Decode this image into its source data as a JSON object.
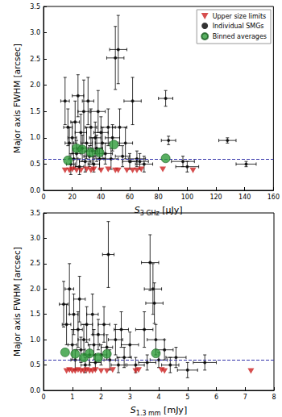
{
  "chart_data": [
    {
      "type": "scatter",
      "xlabel": {
        "main": "S",
        "sub": "3 GHz",
        "rest": " [μJy]"
      },
      "ylabel": "Major axis FWHM [arcsec]",
      "xlim": [
        0,
        160
      ],
      "xticks": [
        0,
        20,
        40,
        60,
        80,
        100,
        120,
        140,
        160
      ],
      "ylim": [
        0,
        3.5
      ],
      "yticks": [
        {
          "value": 0,
          "label": "0.0"
        },
        {
          "value": 0.5,
          "label": "0.5"
        },
        {
          "value": 1,
          "label": "1.0"
        },
        {
          "value": 1.5,
          "label": "1.5"
        },
        {
          "value": 2,
          "label": "2.0"
        },
        {
          "value": 2.5,
          "label": "2.5"
        },
        {
          "value": 3,
          "label": "3.0"
        },
        {
          "value": 3.5,
          "label": "3.5"
        }
      ],
      "grid": false,
      "legend": "upper right",
      "reference_line": {
        "y": 0.6,
        "color": "#3333aa",
        "line_style": "dashed"
      },
      "series": [
        {
          "name": "Upper size limits",
          "color": "#cc2222",
          "marker": "triangle_down",
          "values": [
            [
              15,
              0.38
            ],
            [
              18,
              0.38
            ],
            [
              20,
              0.4
            ],
            [
              23,
              0.38
            ],
            [
              26,
              0.38
            ],
            [
              30,
              0.4
            ],
            [
              33,
              0.38
            ],
            [
              35,
              0.4
            ],
            [
              40,
              0.38
            ],
            [
              45,
              0.4
            ],
            [
              50,
              0.38
            ],
            [
              52,
              0.38
            ],
            [
              58,
              0.38
            ],
            [
              62,
              0.38
            ],
            [
              65,
              0.38
            ],
            [
              68,
              0.4
            ],
            [
              83,
              0.4
            ],
            [
              104,
              0.38
            ]
          ]
        },
        {
          "name": "Individual SMGs",
          "color": "#000000",
          "marker": "circle",
          "values": [
            [
              15,
              1.7
            ],
            [
              17,
              1.2
            ],
            [
              18,
              0.9
            ],
            [
              19,
              0.5
            ],
            [
              20,
              1.0
            ],
            [
              21,
              0.6
            ],
            [
              22,
              1.3
            ],
            [
              23,
              0.7
            ],
            [
              24,
              1.8
            ],
            [
              25,
              0.45
            ],
            [
              26,
              1.1
            ],
            [
              27,
              0.8
            ],
            [
              28,
              1.5
            ],
            [
              29,
              0.55
            ],
            [
              30,
              0.9
            ],
            [
              31,
              1.7
            ],
            [
              32,
              0.65
            ],
            [
              33,
              1.2
            ],
            [
              34,
              0.75
            ],
            [
              35,
              0.5
            ],
            [
              36,
              1.0
            ],
            [
              37,
              0.8
            ],
            [
              38,
              1.5
            ],
            [
              39,
              0.6
            ],
            [
              40,
              1.1
            ],
            [
              41,
              0.9
            ],
            [
              43,
              0.7
            ],
            [
              45,
              1.2
            ],
            [
              47,
              0.6
            ],
            [
              48,
              1.0
            ],
            [
              50,
              2.52
            ],
            [
              52,
              2.68
            ],
            [
              53,
              1.2
            ],
            [
              55,
              0.65
            ],
            [
              57,
              0.9
            ],
            [
              60,
              0.55
            ],
            [
              62,
              1.7
            ],
            [
              65,
              0.6
            ],
            [
              67,
              0.55
            ],
            [
              70,
              0.5
            ],
            [
              85,
              1.75
            ],
            [
              87,
              0.95
            ],
            [
              97,
              0.55
            ],
            [
              100,
              0.45
            ],
            [
              128,
              0.95
            ],
            [
              141,
              0.5
            ]
          ],
          "x_errors": [
            3,
            3,
            3,
            3,
            3,
            3,
            3,
            3,
            4,
            3,
            4,
            4,
            4,
            4,
            4,
            4,
            4,
            4,
            4,
            4,
            4,
            4,
            5,
            4,
            5,
            5,
            5,
            5,
            5,
            5,
            6,
            6,
            5,
            5,
            5,
            5,
            6,
            6,
            6,
            6,
            5,
            5,
            8,
            8,
            6,
            7
          ],
          "y_errors": [
            0.45,
            0.35,
            0.3,
            0.2,
            0.3,
            0.2,
            0.4,
            0.25,
            0.4,
            0.15,
            0.35,
            0.25,
            0.6,
            0.2,
            0.3,
            0.45,
            0.2,
            0.35,
            0.25,
            0.15,
            0.3,
            0.25,
            0.4,
            0.2,
            0.3,
            0.3,
            0.2,
            0.35,
            0.2,
            0.25,
            0.6,
            0.65,
            0.35,
            0.2,
            0.3,
            0.15,
            0.45,
            0.15,
            0.15,
            0.15,
            0.15,
            0.08,
            0.1,
            0.1,
            0.05,
            0.05
          ]
        },
        {
          "name": "Binned averages",
          "color": "#2e9b3a",
          "marker": "circle",
          "values": [
            [
              17,
              0.57
            ],
            [
              23,
              0.8
            ],
            [
              27,
              0.78
            ],
            [
              33,
              0.72
            ],
            [
              39,
              0.72
            ],
            [
              49,
              0.87
            ],
            [
              85,
              0.61
            ]
          ]
        }
      ]
    },
    {
      "type": "scatter",
      "xlabel": {
        "main": "S",
        "sub": "1.3 mm",
        "rest": " [mJy]"
      },
      "ylabel": "Major axis FWHM [arcsec]",
      "xlim": [
        0,
        8
      ],
      "xticks": [
        0,
        1,
        2,
        3,
        4,
        5,
        6,
        7,
        8
      ],
      "ylim": [
        0,
        3.5
      ],
      "yticks": [
        {
          "value": 0,
          "label": "0.0"
        },
        {
          "value": 0.5,
          "label": "0.5"
        },
        {
          "value": 1,
          "label": "1.0"
        },
        {
          "value": 1.5,
          "label": "1.5"
        },
        {
          "value": 2,
          "label": "2.0"
        },
        {
          "value": 2.5,
          "label": "2.5"
        },
        {
          "value": 3,
          "label": "3.0"
        },
        {
          "value": 3.5,
          "label": "3.5"
        }
      ],
      "grid": false,
      "reference_line": {
        "y": 0.6,
        "color": "#3333aa",
        "line_style": "dashed"
      },
      "series": [
        {
          "name": "Upper size limits",
          "color": "#cc2222",
          "marker": "triangle_down",
          "values": [
            [
              0.8,
              0.38
            ],
            [
              0.9,
              0.4
            ],
            [
              1.0,
              0.38
            ],
            [
              1.1,
              0.38
            ],
            [
              1.2,
              0.4
            ],
            [
              1.3,
              0.38
            ],
            [
              1.4,
              0.38
            ],
            [
              1.5,
              0.4
            ],
            [
              1.6,
              0.38
            ],
            [
              1.7,
              0.38
            ],
            [
              1.8,
              0.4
            ],
            [
              2.0,
              0.38
            ],
            [
              2.2,
              0.38
            ],
            [
              2.4,
              0.4
            ],
            [
              3.2,
              0.38
            ],
            [
              3.3,
              0.4
            ],
            [
              4.1,
              0.4
            ],
            [
              4.2,
              0.38
            ],
            [
              7.2,
              0.38
            ]
          ]
        },
        {
          "name": "Individual SMGs",
          "color": "#000000",
          "marker": "circle",
          "values": [
            [
              0.7,
              1.7
            ],
            [
              0.8,
              1.3
            ],
            [
              0.9,
              2.0
            ],
            [
              1.0,
              0.9
            ],
            [
              1.05,
              1.5
            ],
            [
              1.1,
              0.6
            ],
            [
              1.2,
              1.2
            ],
            [
              1.25,
              1.8
            ],
            [
              1.3,
              0.8
            ],
            [
              1.4,
              1.0
            ],
            [
              1.45,
              0.5
            ],
            [
              1.5,
              1.3
            ],
            [
              1.6,
              0.7
            ],
            [
              1.7,
              1.5
            ],
            [
              1.75,
              0.9
            ],
            [
              1.8,
              0.55
            ],
            [
              1.9,
              1.1
            ],
            [
              2.0,
              0.7
            ],
            [
              2.1,
              1.3
            ],
            [
              2.2,
              0.85
            ],
            [
              2.25,
              2.68
            ],
            [
              2.3,
              0.6
            ],
            [
              2.5,
              1.0
            ],
            [
              2.6,
              0.5
            ],
            [
              2.7,
              1.2
            ],
            [
              2.8,
              0.65
            ],
            [
              3.0,
              0.9
            ],
            [
              3.2,
              0.5
            ],
            [
              3.5,
              1.2
            ],
            [
              3.6,
              0.55
            ],
            [
              3.7,
              2.52
            ],
            [
              3.8,
              2.0
            ],
            [
              3.85,
              1.72
            ],
            [
              3.9,
              1.0
            ],
            [
              4.0,
              0.6
            ],
            [
              4.2,
              0.8
            ],
            [
              4.4,
              0.5
            ],
            [
              4.6,
              0.65
            ],
            [
              5.0,
              0.4
            ],
            [
              5.6,
              0.55
            ]
          ],
          "x_errors": [
            0.15,
            0.15,
            0.15,
            0.15,
            0.15,
            0.15,
            0.15,
            0.2,
            0.15,
            0.2,
            0.15,
            0.2,
            0.2,
            0.2,
            0.2,
            0.2,
            0.2,
            0.2,
            0.2,
            0.2,
            0.2,
            0.2,
            0.25,
            0.25,
            0.25,
            0.25,
            0.3,
            0.3,
            0.3,
            0.3,
            0.3,
            0.3,
            0.3,
            0.3,
            0.3,
            0.3,
            0.3,
            0.35,
            0.35,
            0.4
          ],
          "y_errors": [
            0.45,
            0.4,
            0.5,
            0.3,
            0.4,
            0.2,
            0.35,
            0.45,
            0.25,
            0.3,
            0.15,
            0.35,
            0.2,
            0.4,
            0.3,
            0.15,
            0.3,
            0.2,
            0.35,
            0.25,
            0.65,
            0.2,
            0.3,
            0.15,
            0.35,
            0.2,
            0.25,
            0.15,
            0.35,
            0.15,
            0.55,
            0.5,
            0.4,
            0.3,
            0.15,
            0.2,
            0.15,
            0.2,
            0.15,
            0.15
          ]
        },
        {
          "name": "Binned averages",
          "color": "#2e9b3a",
          "marker": "circle",
          "values": [
            [
              0.75,
              0.75
            ],
            [
              1.1,
              0.72
            ],
            [
              1.4,
              0.65
            ],
            [
              1.6,
              0.73
            ],
            [
              1.9,
              0.65
            ],
            [
              2.2,
              0.72
            ],
            [
              3.9,
              0.73
            ]
          ]
        }
      ]
    }
  ]
}
